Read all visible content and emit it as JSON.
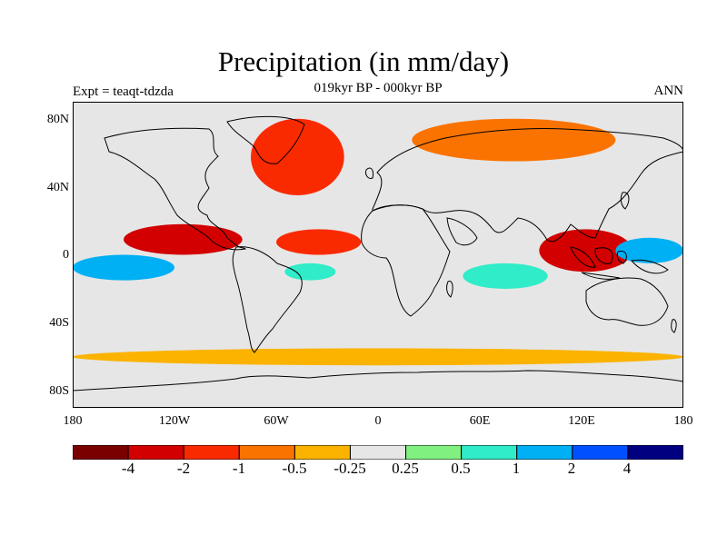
{
  "header": {
    "title": "Precipitation (in mm/day)",
    "subtitle": "019kyr BP - 000kyr BP",
    "left_label": "Expt = teaqt-tdzda",
    "right_label": "ANN"
  },
  "axes": {
    "y_ticks": [
      "80N",
      "40N",
      "0",
      "40S",
      "80S"
    ],
    "x_ticks": [
      "180",
      "120W",
      "60W",
      "0",
      "60E",
      "120E",
      "180"
    ]
  },
  "colorbar": {
    "labels": [
      "-4",
      "-2",
      "-1",
      "-0.5",
      "-0.25",
      "0.25",
      "0.5",
      "1",
      "2",
      "4"
    ],
    "colors": [
      "#7a0000",
      "#d20000",
      "#fa2a00",
      "#fa7300",
      "#fbb300",
      "#e6e6e6",
      "#80f080",
      "#30ecc8",
      "#00b0f4",
      "#0050ff",
      "#000080"
    ]
  },
  "chart_data": {
    "type": "heatmap",
    "title": "Precipitation (in mm/day)",
    "subtitle": "019kyr BP - 000kyr BP",
    "experiment": "Expt = teaqt-tdzda",
    "season": "ANN",
    "x_range": [
      -180,
      180
    ],
    "y_range": [
      -90,
      90
    ],
    "contour_levels": [
      -4,
      -2,
      -1,
      -0.5,
      -0.25,
      0.25,
      0.5,
      1,
      2,
      4
    ],
    "anomaly_regions": [
      {
        "region": "Greenland / North Atlantic",
        "lon": [
          -75,
          -20
        ],
        "lat": [
          35,
          80
        ],
        "value": -1.5
      },
      {
        "region": "Arctic Eurasia",
        "lon": [
          20,
          140
        ],
        "lat": [
          55,
          80
        ],
        "value": -0.6
      },
      {
        "region": "Eastern Tropical Pacific ITCZ",
        "lon": [
          -150,
          -80
        ],
        "lat": [
          0,
          18
        ],
        "value": -2.5
      },
      {
        "region": "Tropical Atlantic ITCZ",
        "lon": [
          -60,
          -10
        ],
        "lat": [
          0,
          15
        ],
        "value": -1.5
      },
      {
        "region": "South Pacific (south of equator)",
        "lon": [
          -180,
          -120
        ],
        "lat": [
          -15,
          0
        ],
        "value": 2
      },
      {
        "region": "Equatorial Brazil / Atlantic",
        "lon": [
          -55,
          -25
        ],
        "lat": [
          -15,
          -5
        ],
        "value": 1
      },
      {
        "region": "South Indian Ocean",
        "lon": [
          50,
          100
        ],
        "lat": [
          -20,
          -5
        ],
        "value": 0.8
      },
      {
        "region": "Maritime Continent",
        "lon": [
          95,
          150
        ],
        "lat": [
          -10,
          15
        ],
        "value": -2.5
      },
      {
        "region": "Western Pacific warm pool",
        "lon": [
          140,
          180
        ],
        "lat": [
          -5,
          10
        ],
        "value": 2
      },
      {
        "region": "Southern Ocean",
        "lon": [
          -180,
          180
        ],
        "lat": [
          -65,
          -55
        ],
        "value": -0.3
      }
    ]
  }
}
